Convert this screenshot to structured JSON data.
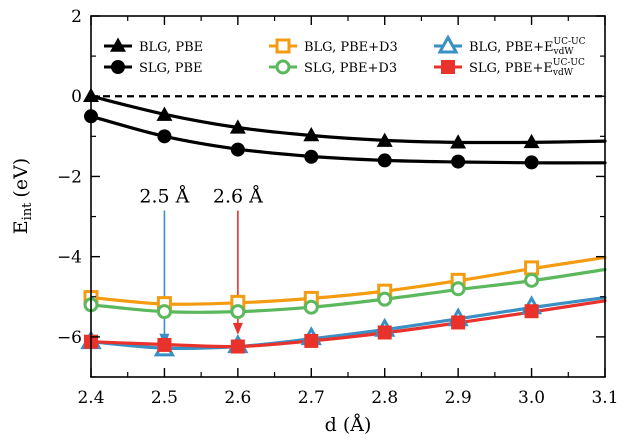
{
  "chart_data": {
    "type": "line",
    "xlabel": "d (Å)",
    "ylabel_main": "E",
    "ylabel_sub": "int",
    "ylabel_unit": "(eV)",
    "xlim": [
      2.4,
      3.1
    ],
    "ylim": [
      -7,
      2
    ],
    "xticks": [
      2.4,
      2.5,
      2.6,
      2.7,
      2.8,
      2.9,
      3.0,
      3.1
    ],
    "xtick_labels": [
      "2.4",
      "2.5",
      "2.6",
      "2.7",
      "2.8",
      "2.9",
      "3.0",
      "3.1"
    ],
    "yticks": [
      2,
      0,
      -2,
      -4,
      -6
    ],
    "ytick_labels": [
      "2",
      "0",
      "−2",
      "−4",
      "−6"
    ],
    "grid": false,
    "legend_position": "top",
    "series": [
      {
        "key": "blg-pbe",
        "name": "BLG, PBE",
        "color": "#000000",
        "marker": "triangle-filled",
        "x": [
          2.4,
          2.5,
          2.6,
          2.7,
          2.8,
          2.9,
          3.0
        ],
        "y": [
          0.0,
          -0.47,
          -0.79,
          -0.98,
          -1.12,
          -1.16,
          -1.15
        ],
        "curve": [
          [
            2.4,
            0.0
          ],
          [
            2.5,
            -0.45
          ],
          [
            2.6,
            -0.78
          ],
          [
            2.7,
            -0.98
          ],
          [
            2.8,
            -1.1
          ],
          [
            2.9,
            -1.15
          ],
          [
            3.0,
            -1.15
          ],
          [
            3.1,
            -1.12
          ]
        ]
      },
      {
        "key": "slg-pbe",
        "name": "SLG, PBE",
        "color": "#000000",
        "marker": "circle-filled",
        "x": [
          2.4,
          2.5,
          2.6,
          2.7,
          2.8,
          2.9,
          3.0
        ],
        "y": [
          -0.5,
          -1.0,
          -1.33,
          -1.51,
          -1.6,
          -1.63,
          -1.65
        ],
        "curve": [
          [
            2.4,
            -0.5
          ],
          [
            2.5,
            -1.0
          ],
          [
            2.6,
            -1.32
          ],
          [
            2.7,
            -1.5
          ],
          [
            2.8,
            -1.6
          ],
          [
            2.9,
            -1.64
          ],
          [
            3.0,
            -1.66
          ],
          [
            3.1,
            -1.66
          ]
        ]
      },
      {
        "key": "blg-pbe-d3",
        "name": "BLG, PBE+D3",
        "color": "#f39c12",
        "marker": "square-open",
        "x": [
          2.4,
          2.5,
          2.6,
          2.7,
          2.8,
          2.9,
          3.0
        ],
        "y": [
          -5.02,
          -5.17,
          -5.14,
          -5.04,
          -4.86,
          -4.59,
          -4.28
        ],
        "curve": [
          [
            2.4,
            -5.02
          ],
          [
            2.5,
            -5.18
          ],
          [
            2.6,
            -5.15
          ],
          [
            2.7,
            -5.04
          ],
          [
            2.8,
            -4.86
          ],
          [
            2.9,
            -4.6
          ],
          [
            3.0,
            -4.3
          ],
          [
            3.1,
            -4.02
          ]
        ]
      },
      {
        "key": "slg-pbe-d3",
        "name": "SLG, PBE+D3",
        "color": "#5cb85c",
        "marker": "circle-open",
        "x": [
          2.4,
          2.5,
          2.6,
          2.7,
          2.8,
          2.9,
          3.0
        ],
        "y": [
          -5.2,
          -5.37,
          -5.37,
          -5.26,
          -5.06,
          -4.8,
          -4.59
        ],
        "curve": [
          [
            2.4,
            -5.2
          ],
          [
            2.5,
            -5.37
          ],
          [
            2.6,
            -5.37
          ],
          [
            2.7,
            -5.26
          ],
          [
            2.8,
            -5.06
          ],
          [
            2.9,
            -4.82
          ],
          [
            3.0,
            -4.6
          ],
          [
            3.1,
            -4.32
          ]
        ]
      },
      {
        "key": "blg-pbe-evdw",
        "name_main": "BLG, PBE+E",
        "name_sup": "UC-UC",
        "name_sub": "vdW",
        "color": "#3a8fc4",
        "marker": "triangle-open",
        "x": [
          2.4,
          2.5,
          2.6,
          2.7,
          2.8,
          2.9,
          3.0
        ],
        "y": [
          -6.12,
          -6.3,
          -6.22,
          -6.02,
          -5.81,
          -5.55,
          -5.25
        ],
        "curve": [
          [
            2.4,
            -6.12
          ],
          [
            2.5,
            -6.28
          ],
          [
            2.6,
            -6.24
          ],
          [
            2.7,
            -6.05
          ],
          [
            2.8,
            -5.82
          ],
          [
            2.9,
            -5.55
          ],
          [
            3.0,
            -5.27
          ],
          [
            3.1,
            -5.02
          ]
        ]
      },
      {
        "key": "slg-pbe-evdw",
        "name_main": "SLG, PBE+E",
        "name_sup": "UC-UC",
        "name_sub": "vdW",
        "color": "#e8322b",
        "marker": "square-filled",
        "x": [
          2.4,
          2.5,
          2.6,
          2.7,
          2.8,
          2.9,
          3.0
        ],
        "y": [
          -6.12,
          -6.2,
          -6.24,
          -6.1,
          -5.89,
          -5.64,
          -5.36
        ],
        "curve": [
          [
            2.4,
            -6.12
          ],
          [
            2.5,
            -6.19
          ],
          [
            2.6,
            -6.24
          ],
          [
            2.7,
            -6.1
          ],
          [
            2.8,
            -5.9
          ],
          [
            2.9,
            -5.65
          ],
          [
            3.0,
            -5.38
          ],
          [
            3.1,
            -5.1
          ]
        ]
      }
    ],
    "annotations": [
      {
        "key": "arrow-25",
        "text": "2.5 Å",
        "x": 2.5,
        "y_start": -2.85,
        "y_end": -6.22,
        "color": "#3a8fc4"
      },
      {
        "key": "arrow-26",
        "text": "2.6 Å",
        "x": 2.6,
        "y_start": -2.85,
        "y_end": -5.95,
        "color": "#e8322b"
      }
    ],
    "reference_line": {
      "y": 0,
      "style": "dashed",
      "color": "#000000"
    }
  }
}
